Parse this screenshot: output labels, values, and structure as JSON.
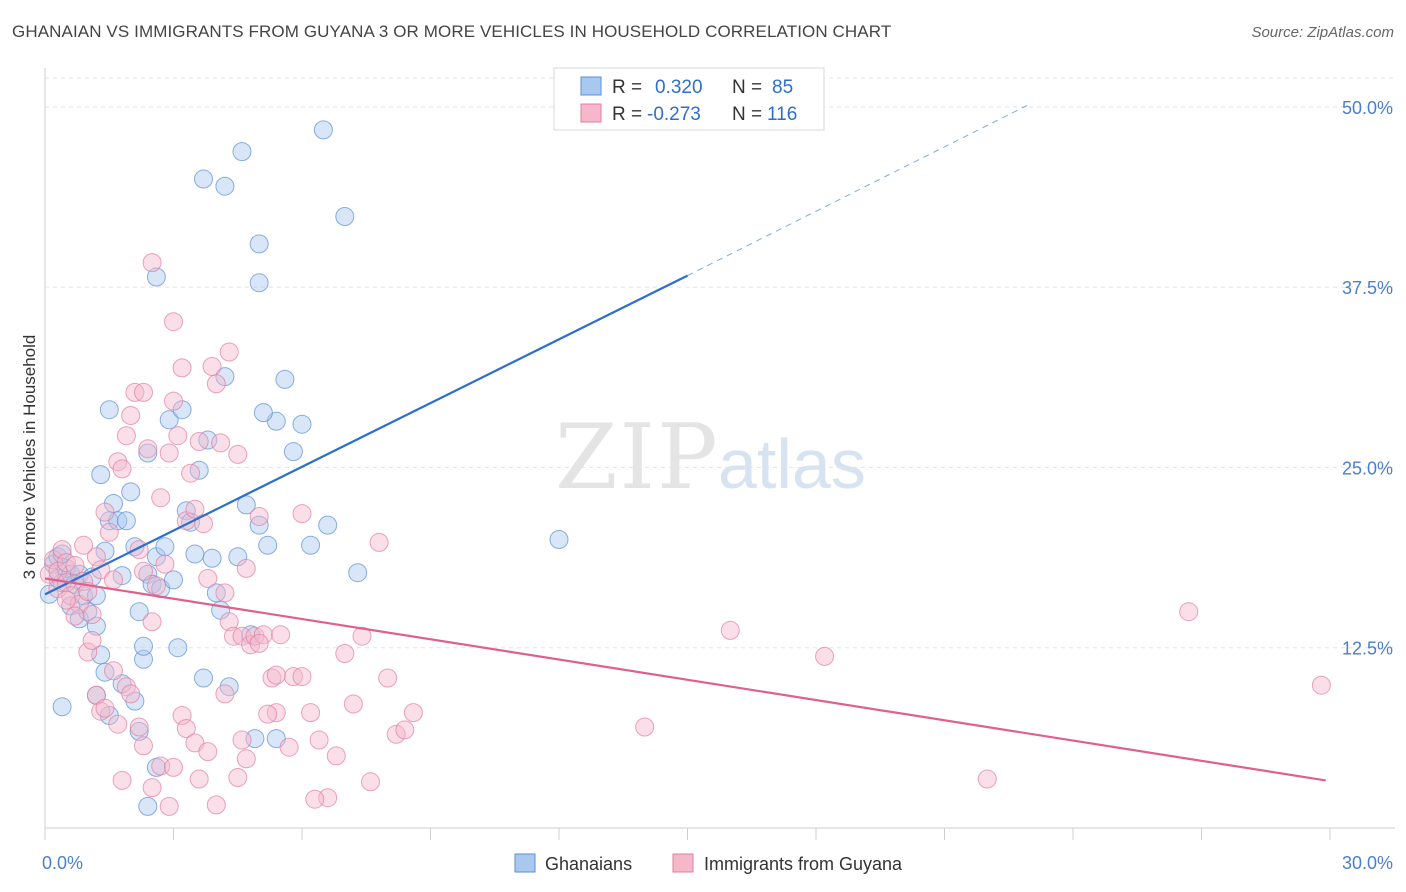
{
  "header": {
    "title": "GHANAIAN VS IMMIGRANTS FROM GUYANA 3 OR MORE VEHICLES IN HOUSEHOLD CORRELATION CHART",
    "source": "Source: ZipAtlas.com"
  },
  "watermark": {
    "zip": "ZIP",
    "atlas": "atlas"
  },
  "chart_data": {
    "type": "scatter",
    "xlim": [
      0,
      30
    ],
    "ylim": [
      0,
      52
    ],
    "ylabel": "3 or more Vehicles in Household",
    "x_tick_labels": [
      "0.0%",
      "30.0%"
    ],
    "y_ticks": [
      {
        "value": 12.5,
        "label": "12.5%"
      },
      {
        "value": 25.0,
        "label": "25.0%"
      },
      {
        "value": 37.5,
        "label": "37.5%"
      },
      {
        "value": 50.0,
        "label": "50.0%"
      }
    ],
    "grid": true,
    "legend_position": "top-center",
    "colors": {
      "blue_fill": "#a9c8f0",
      "blue_stroke": "#5b8fd6",
      "blue_line": "#2d6fcc",
      "pink_fill": "#f5b8cb",
      "pink_stroke": "#e37ea0",
      "pink_line": "#e0608a",
      "axis_label": "#4a7fd0"
    },
    "stats": [
      {
        "r_label": "R =",
        "r_value": "0.320",
        "n_label": "N =",
        "n_value": "85"
      },
      {
        "r_label": "R =",
        "r_value": "-0.273",
        "n_label": "N =",
        "n_value": "116"
      }
    ],
    "series": [
      {
        "name": "Ghanaians",
        "trend": {
          "x0": 0,
          "y0": 16.2,
          "x1": 15,
          "y1": 38.3,
          "dash_to_x": 23,
          "dash_to_y": 50.2
        },
        "points": [
          [
            0.1,
            16.2
          ],
          [
            0.2,
            18.3
          ],
          [
            0.3,
            17.3
          ],
          [
            0.3,
            18.8
          ],
          [
            0.4,
            17.0
          ],
          [
            0.5,
            18.0
          ],
          [
            0.6,
            17.6
          ],
          [
            0.7,
            16.9
          ],
          [
            0.8,
            17.6
          ],
          [
            0.9,
            16.1
          ],
          [
            0.4,
            19.0
          ],
          [
            0.6,
            15.4
          ],
          [
            0.8,
            14.5
          ],
          [
            1.0,
            15.0
          ],
          [
            1.1,
            17.4
          ],
          [
            1.2,
            16.1
          ],
          [
            1.2,
            14.0
          ],
          [
            1.3,
            12.0
          ],
          [
            1.4,
            19.2
          ],
          [
            1.5,
            21.3
          ],
          [
            1.6,
            22.5
          ],
          [
            1.7,
            21.3
          ],
          [
            1.8,
            17.5
          ],
          [
            1.9,
            21.3
          ],
          [
            2.0,
            23.3
          ],
          [
            2.1,
            19.5
          ],
          [
            2.2,
            15.0
          ],
          [
            2.3,
            11.7
          ],
          [
            2.4,
            17.6
          ],
          [
            2.5,
            16.9
          ],
          [
            2.6,
            18.8
          ],
          [
            2.7,
            16.6
          ],
          [
            2.8,
            19.5
          ],
          [
            2.9,
            28.3
          ],
          [
            3.0,
            17.2
          ],
          [
            3.1,
            12.5
          ],
          [
            3.2,
            29.0
          ],
          [
            3.3,
            22.0
          ],
          [
            3.4,
            21.2
          ],
          [
            3.5,
            19.0
          ],
          [
            3.6,
            24.8
          ],
          [
            3.7,
            10.4
          ],
          [
            3.8,
            26.9
          ],
          [
            3.9,
            18.7
          ],
          [
            4.0,
            16.3
          ],
          [
            4.1,
            15.1
          ],
          [
            4.2,
            31.3
          ],
          [
            4.3,
            9.8
          ],
          [
            4.5,
            18.8
          ],
          [
            4.7,
            22.4
          ],
          [
            4.8,
            13.4
          ],
          [
            4.9,
            6.2
          ],
          [
            5.0,
            21.0
          ],
          [
            5.2,
            19.6
          ],
          [
            5.4,
            28.2
          ],
          [
            5.6,
            31.1
          ],
          [
            5.8,
            26.1
          ],
          [
            6.0,
            28.0
          ],
          [
            6.2,
            19.6
          ],
          [
            6.5,
            48.4
          ],
          [
            6.6,
            21.0
          ],
          [
            7.0,
            42.4
          ],
          [
            7.3,
            17.7
          ],
          [
            3.7,
            45.0
          ],
          [
            4.2,
            44.5
          ],
          [
            4.6,
            46.9
          ],
          [
            5.0,
            40.5
          ],
          [
            5.0,
            37.8
          ],
          [
            2.6,
            38.2
          ],
          [
            5.1,
            28.8
          ],
          [
            0.4,
            8.4
          ],
          [
            1.2,
            9.2
          ],
          [
            1.4,
            10.8
          ],
          [
            1.5,
            7.8
          ],
          [
            1.8,
            10.0
          ],
          [
            2.1,
            8.8
          ],
          [
            2.2,
            6.7
          ],
          [
            2.6,
            4.2
          ],
          [
            2.4,
            1.5
          ],
          [
            5.4,
            6.2
          ],
          [
            2.3,
            12.6
          ],
          [
            1.3,
            24.5
          ],
          [
            1.5,
            29.0
          ],
          [
            2.4,
            26.0
          ],
          [
            12.0,
            20.0
          ]
        ]
      },
      {
        "name": "Immigrants from Guyana",
        "trend": {
          "x0": 0,
          "y0": 17.3,
          "x1": 29.9,
          "y1": 3.3
        },
        "points": [
          [
            0.1,
            17.6
          ],
          [
            0.2,
            18.6
          ],
          [
            0.3,
            17.8
          ],
          [
            0.3,
            16.6
          ],
          [
            0.4,
            19.3
          ],
          [
            0.5,
            18.4
          ],
          [
            0.5,
            17.0
          ],
          [
            0.6,
            16.1
          ],
          [
            0.7,
            18.2
          ],
          [
            0.8,
            15.5
          ],
          [
            0.9,
            17.1
          ],
          [
            0.9,
            19.6
          ],
          [
            1.0,
            16.4
          ],
          [
            1.1,
            14.8
          ],
          [
            1.2,
            18.8
          ],
          [
            1.3,
            17.9
          ],
          [
            1.4,
            21.9
          ],
          [
            1.5,
            20.5
          ],
          [
            1.6,
            17.2
          ],
          [
            1.7,
            25.4
          ],
          [
            1.8,
            24.9
          ],
          [
            1.9,
            27.2
          ],
          [
            2.0,
            28.6
          ],
          [
            2.1,
            30.2
          ],
          [
            2.2,
            19.3
          ],
          [
            2.3,
            17.8
          ],
          [
            2.4,
            26.3
          ],
          [
            2.5,
            14.3
          ],
          [
            2.6,
            16.8
          ],
          [
            2.7,
            22.9
          ],
          [
            2.8,
            18.3
          ],
          [
            2.9,
            26.0
          ],
          [
            3.0,
            29.6
          ],
          [
            3.1,
            27.2
          ],
          [
            3.2,
            31.9
          ],
          [
            3.3,
            21.3
          ],
          [
            3.4,
            24.6
          ],
          [
            3.5,
            22.1
          ],
          [
            3.6,
            26.8
          ],
          [
            3.7,
            21.1
          ],
          [
            3.8,
            17.3
          ],
          [
            3.9,
            32.0
          ],
          [
            4.0,
            30.8
          ],
          [
            4.1,
            26.7
          ],
          [
            4.2,
            16.3
          ],
          [
            4.3,
            14.3
          ],
          [
            4.4,
            13.3
          ],
          [
            4.5,
            25.9
          ],
          [
            4.6,
            13.3
          ],
          [
            4.7,
            18.0
          ],
          [
            4.8,
            12.7
          ],
          [
            4.9,
            13.3
          ],
          [
            5.0,
            21.6
          ],
          [
            5.1,
            13.4
          ],
          [
            5.3,
            10.4
          ],
          [
            5.4,
            8.0
          ],
          [
            5.5,
            13.4
          ],
          [
            5.8,
            10.5
          ],
          [
            6.0,
            21.8
          ],
          [
            6.2,
            8.0
          ],
          [
            6.4,
            6.1
          ],
          [
            6.6,
            2.1
          ],
          [
            6.8,
            5.0
          ],
          [
            7.0,
            12.1
          ],
          [
            7.2,
            8.6
          ],
          [
            7.4,
            13.3
          ],
          [
            7.6,
            3.2
          ],
          [
            7.8,
            19.8
          ],
          [
            8.0,
            10.4
          ],
          [
            8.2,
            6.5
          ],
          [
            8.4,
            6.8
          ],
          [
            8.6,
            8.0
          ],
          [
            2.5,
            39.2
          ],
          [
            3.0,
            35.1
          ],
          [
            2.3,
            30.2
          ],
          [
            4.3,
            33.0
          ],
          [
            0.5,
            15.8
          ],
          [
            0.7,
            14.7
          ],
          [
            1.0,
            12.2
          ],
          [
            1.1,
            13.0
          ],
          [
            1.2,
            9.2
          ],
          [
            1.3,
            8.1
          ],
          [
            1.4,
            8.3
          ],
          [
            1.6,
            10.9
          ],
          [
            1.7,
            7.2
          ],
          [
            1.8,
            3.3
          ],
          [
            1.9,
            9.8
          ],
          [
            2.0,
            9.3
          ],
          [
            2.2,
            7.0
          ],
          [
            2.3,
            5.7
          ],
          [
            2.5,
            2.8
          ],
          [
            2.7,
            4.3
          ],
          [
            2.9,
            1.5
          ],
          [
            3.0,
            4.2
          ],
          [
            3.2,
            7.8
          ],
          [
            3.3,
            6.9
          ],
          [
            3.5,
            5.9
          ],
          [
            3.6,
            3.4
          ],
          [
            3.8,
            5.3
          ],
          [
            4.0,
            1.6
          ],
          [
            4.2,
            9.3
          ],
          [
            4.5,
            3.5
          ],
          [
            4.6,
            6.1
          ],
          [
            4.7,
            4.8
          ],
          [
            5.0,
            12.8
          ],
          [
            5.2,
            7.9
          ],
          [
            5.4,
            10.6
          ],
          [
            5.7,
            5.6
          ],
          [
            6.0,
            10.5
          ],
          [
            6.3,
            2.0
          ],
          [
            16.0,
            13.7
          ],
          [
            14.0,
            7.0
          ],
          [
            18.2,
            11.9
          ],
          [
            22.0,
            3.4
          ],
          [
            26.7,
            15.0
          ],
          [
            29.8,
            9.9
          ]
        ]
      }
    ]
  }
}
